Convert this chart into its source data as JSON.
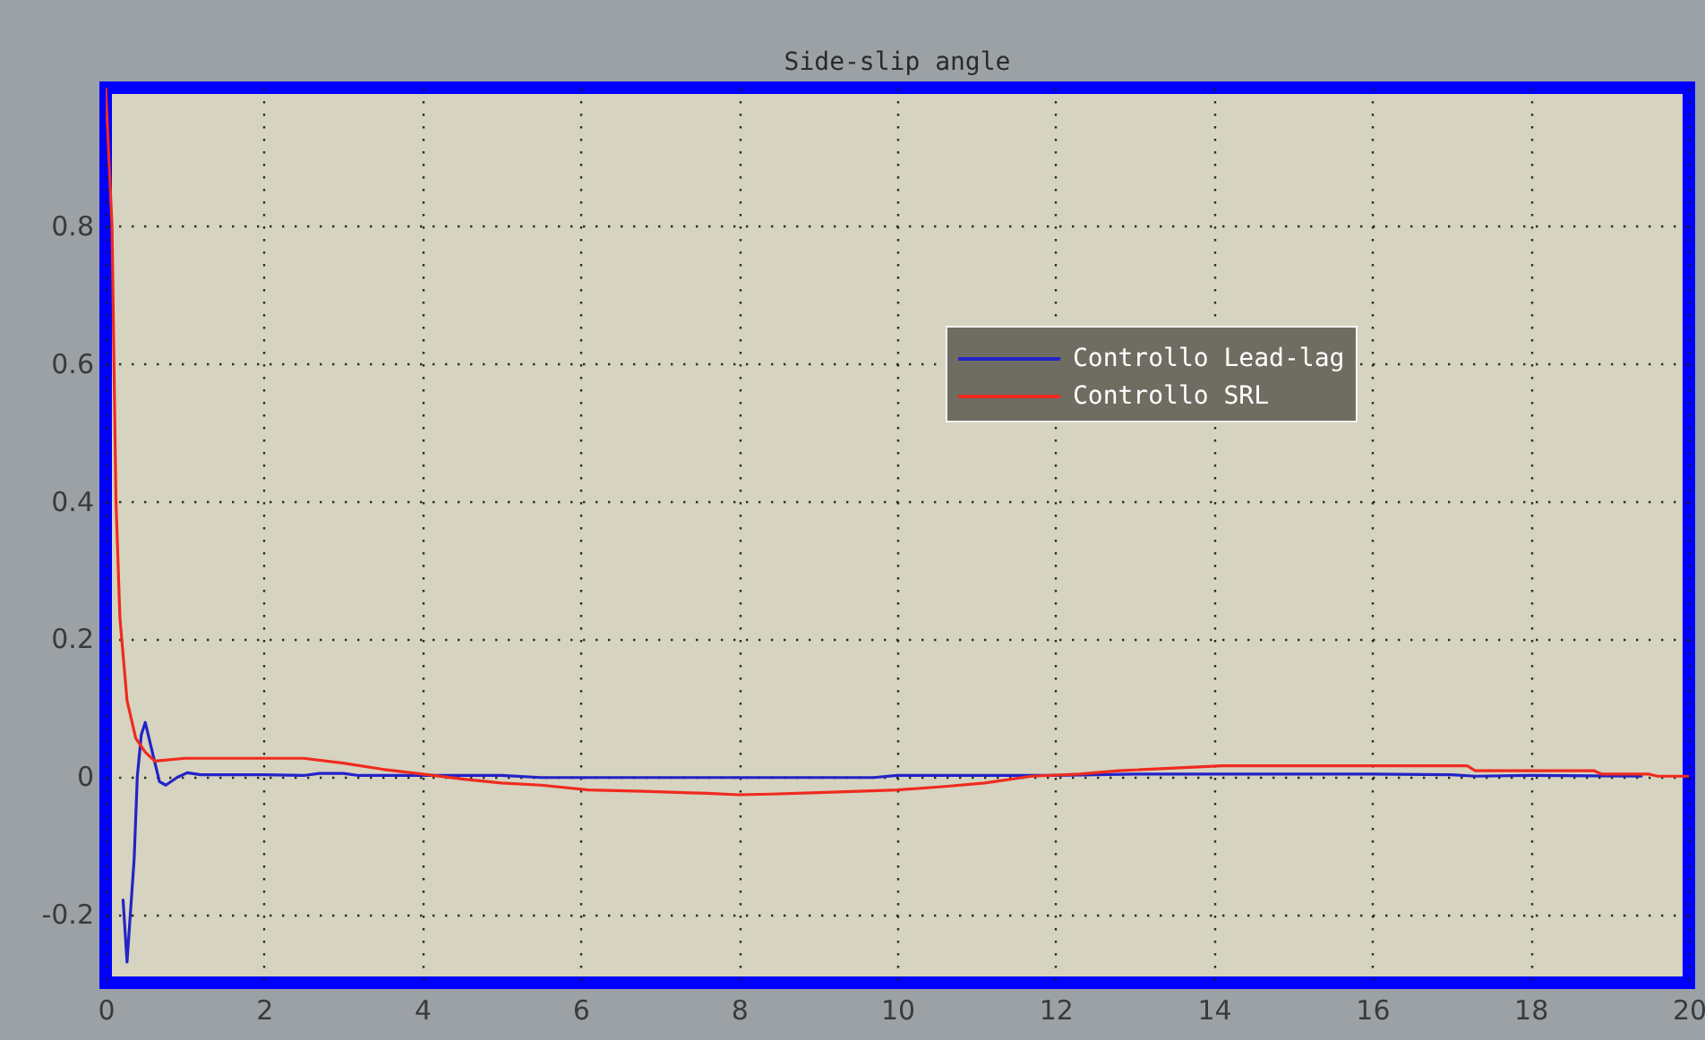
{
  "chart_data": {
    "type": "line",
    "title": "Side-slip angle",
    "series": [
      {
        "name": "Controllo Lead-lag",
        "color": "#2323c8",
        "x": [
          0.22,
          0.27,
          0.36,
          0.4,
          0.45,
          0.5,
          0.6,
          0.68,
          0.76,
          0.9,
          1.03,
          1.2,
          2.0,
          2.5,
          2.7,
          3.0,
          3.2,
          4.0,
          5.0,
          5.5,
          6.0,
          8.0,
          9.7,
          10.0,
          12.0,
          13.0,
          14.0,
          16.0,
          17.0,
          17.3,
          18.0,
          19.4
        ],
        "values": [
          -0.18,
          -0.27,
          -0.12,
          0.0,
          0.06,
          0.078,
          0.03,
          -0.008,
          -0.013,
          -0.002,
          0.005,
          0.002,
          0.002,
          0.001,
          0.004,
          0.004,
          0.001,
          0.001,
          0.001,
          -0.002,
          -0.002,
          -0.002,
          -0.002,
          0.001,
          0.001,
          0.003,
          0.003,
          0.003,
          0.002,
          0.0,
          0.001,
          0.0
        ]
      },
      {
        "name": "Controllo SRL",
        "color": "#f02a1e",
        "x": [
          0.0,
          0.08,
          0.13,
          0.18,
          0.27,
          0.38,
          0.5,
          0.62,
          1.0,
          2.5,
          3.0,
          3.5,
          4.0,
          4.5,
          5.0,
          5.5,
          6.1,
          6.8,
          7.6,
          8.0,
          8.4,
          9.0,
          10.0,
          10.6,
          11.1,
          11.7,
          12.3,
          12.8,
          14.1,
          17.2,
          17.3,
          18.8,
          18.9,
          19.5,
          19.6,
          20.0
        ],
        "values": [
          1.0,
          0.8,
          0.4,
          0.23,
          0.11,
          0.055,
          0.035,
          0.022,
          0.026,
          0.026,
          0.019,
          0.01,
          0.003,
          -0.004,
          -0.01,
          -0.013,
          -0.02,
          -0.022,
          -0.025,
          -0.027,
          -0.026,
          -0.024,
          -0.02,
          -0.015,
          -0.01,
          0.0,
          0.003,
          0.008,
          0.015,
          0.015,
          0.008,
          0.008,
          0.003,
          0.003,
          0.0,
          0.0
        ]
      }
    ],
    "xlim": [
      0,
      20
    ],
    "ylim": [
      -0.3,
      1.0
    ],
    "xticks": [
      0,
      2,
      4,
      6,
      8,
      10,
      12,
      14,
      16,
      18,
      20
    ],
    "yticks": [
      -0.2,
      0,
      0.2,
      0.4,
      0.6,
      0.8
    ],
    "grid": true,
    "legend": "top right",
    "marker": "none",
    "line_style": "solid"
  }
}
